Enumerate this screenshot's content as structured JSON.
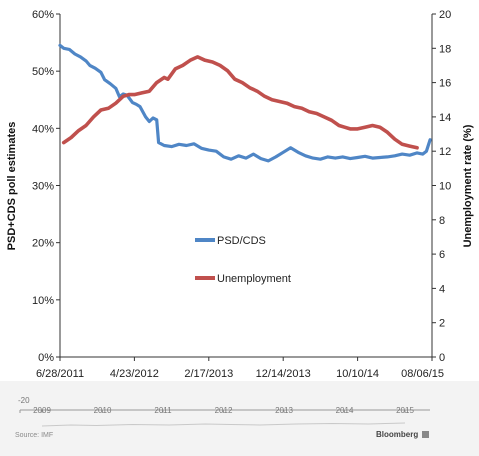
{
  "chart_data": {
    "type": "line",
    "ylabel": "PSD+CDS poll estimates",
    "y2label": "Unemployment rate (%)",
    "ylim": [
      0,
      60
    ],
    "y2lim": [
      0,
      20
    ],
    "yticks": [
      "0%",
      "10%",
      "20%",
      "30%",
      "40%",
      "50%",
      "60%"
    ],
    "y2ticks": [
      "0",
      "2",
      "4",
      "6",
      "8",
      "10",
      "12",
      "14",
      "16",
      "18",
      "20"
    ],
    "xticks": [
      {
        "label": "6/28/2011",
        "t": 0.0
      },
      {
        "label": "4/23/2012",
        "t": 0.2
      },
      {
        "label": "2/17/2013",
        "t": 0.4
      },
      {
        "label": "12/14/2013",
        "t": 0.6
      },
      {
        "label": "10/10/14",
        "t": 0.8
      },
      {
        "label": "08/06/15",
        "t": 1.0
      }
    ],
    "grid": false,
    "legend": "center",
    "series": [
      {
        "name": "PSD/CDS",
        "axis": "left",
        "color": "#4f86c6",
        "points": [
          [
            0.0,
            54.5
          ],
          [
            0.01,
            54.0
          ],
          [
            0.025,
            53.8
          ],
          [
            0.04,
            53.0
          ],
          [
            0.055,
            52.5
          ],
          [
            0.07,
            51.8
          ],
          [
            0.08,
            51.0
          ],
          [
            0.095,
            50.5
          ],
          [
            0.11,
            49.8
          ],
          [
            0.12,
            48.5
          ],
          [
            0.135,
            47.8
          ],
          [
            0.15,
            47.0
          ],
          [
            0.16,
            45.5
          ],
          [
            0.17,
            46.0
          ],
          [
            0.18,
            45.8
          ],
          [
            0.195,
            44.5
          ],
          [
            0.205,
            44.2
          ],
          [
            0.215,
            43.8
          ],
          [
            0.23,
            42.0
          ],
          [
            0.24,
            41.2
          ],
          [
            0.25,
            41.8
          ],
          [
            0.26,
            41.5
          ],
          [
            0.265,
            37.5
          ],
          [
            0.28,
            37.0
          ],
          [
            0.3,
            36.8
          ],
          [
            0.32,
            37.2
          ],
          [
            0.34,
            37.0
          ],
          [
            0.36,
            37.3
          ],
          [
            0.38,
            36.5
          ],
          [
            0.4,
            36.2
          ],
          [
            0.42,
            36.0
          ],
          [
            0.44,
            35.0
          ],
          [
            0.46,
            34.6
          ],
          [
            0.48,
            35.2
          ],
          [
            0.5,
            34.8
          ],
          [
            0.52,
            35.5
          ],
          [
            0.54,
            34.7
          ],
          [
            0.56,
            34.3
          ],
          [
            0.58,
            35.0
          ],
          [
            0.6,
            35.8
          ],
          [
            0.62,
            36.6
          ],
          [
            0.64,
            35.8
          ],
          [
            0.66,
            35.2
          ],
          [
            0.68,
            34.8
          ],
          [
            0.7,
            34.6
          ],
          [
            0.72,
            35.0
          ],
          [
            0.74,
            34.8
          ],
          [
            0.76,
            35.0
          ],
          [
            0.78,
            34.7
          ],
          [
            0.8,
            34.9
          ],
          [
            0.82,
            35.1
          ],
          [
            0.84,
            34.8
          ],
          [
            0.86,
            34.9
          ],
          [
            0.88,
            35.0
          ],
          [
            0.9,
            35.2
          ],
          [
            0.92,
            35.5
          ],
          [
            0.94,
            35.3
          ],
          [
            0.96,
            35.7
          ],
          [
            0.975,
            35.5
          ],
          [
            0.985,
            36.0
          ],
          [
            0.995,
            38.0
          ]
        ]
      },
      {
        "name": "Unemployment",
        "axis": "right",
        "color": "#c0504d",
        "points": [
          [
            0.01,
            12.5
          ],
          [
            0.03,
            12.8
          ],
          [
            0.05,
            13.2
          ],
          [
            0.07,
            13.5
          ],
          [
            0.09,
            14.0
          ],
          [
            0.11,
            14.4
          ],
          [
            0.13,
            14.5
          ],
          [
            0.15,
            14.8
          ],
          [
            0.17,
            15.2
          ],
          [
            0.185,
            15.3
          ],
          [
            0.2,
            15.3
          ],
          [
            0.22,
            15.4
          ],
          [
            0.24,
            15.5
          ],
          [
            0.26,
            16.0
          ],
          [
            0.28,
            16.3
          ],
          [
            0.29,
            16.2
          ],
          [
            0.31,
            16.8
          ],
          [
            0.33,
            17.0
          ],
          [
            0.35,
            17.3
          ],
          [
            0.37,
            17.5
          ],
          [
            0.39,
            17.3
          ],
          [
            0.41,
            17.2
          ],
          [
            0.43,
            17.0
          ],
          [
            0.45,
            16.7
          ],
          [
            0.47,
            16.2
          ],
          [
            0.49,
            16.0
          ],
          [
            0.51,
            15.7
          ],
          [
            0.53,
            15.5
          ],
          [
            0.55,
            15.2
          ],
          [
            0.57,
            15.0
          ],
          [
            0.59,
            14.9
          ],
          [
            0.61,
            14.8
          ],
          [
            0.63,
            14.6
          ],
          [
            0.65,
            14.5
          ],
          [
            0.67,
            14.3
          ],
          [
            0.69,
            14.2
          ],
          [
            0.71,
            14.0
          ],
          [
            0.73,
            13.8
          ],
          [
            0.75,
            13.5
          ],
          [
            0.765,
            13.4
          ],
          [
            0.78,
            13.3
          ],
          [
            0.8,
            13.3
          ],
          [
            0.82,
            13.4
          ],
          [
            0.84,
            13.5
          ],
          [
            0.86,
            13.4
          ],
          [
            0.88,
            13.1
          ],
          [
            0.9,
            12.7
          ],
          [
            0.92,
            12.4
          ],
          [
            0.94,
            12.3
          ],
          [
            0.96,
            12.2
          ]
        ]
      }
    ],
    "timeline": {
      "yticks": [
        "20"
      ],
      "xticks": [
        "2009",
        "2010",
        "2011",
        "2012",
        "2013",
        "2014",
        "2015"
      ]
    }
  },
  "footer": {
    "source": "Source: IMF",
    "brand": "Bloomberg"
  }
}
